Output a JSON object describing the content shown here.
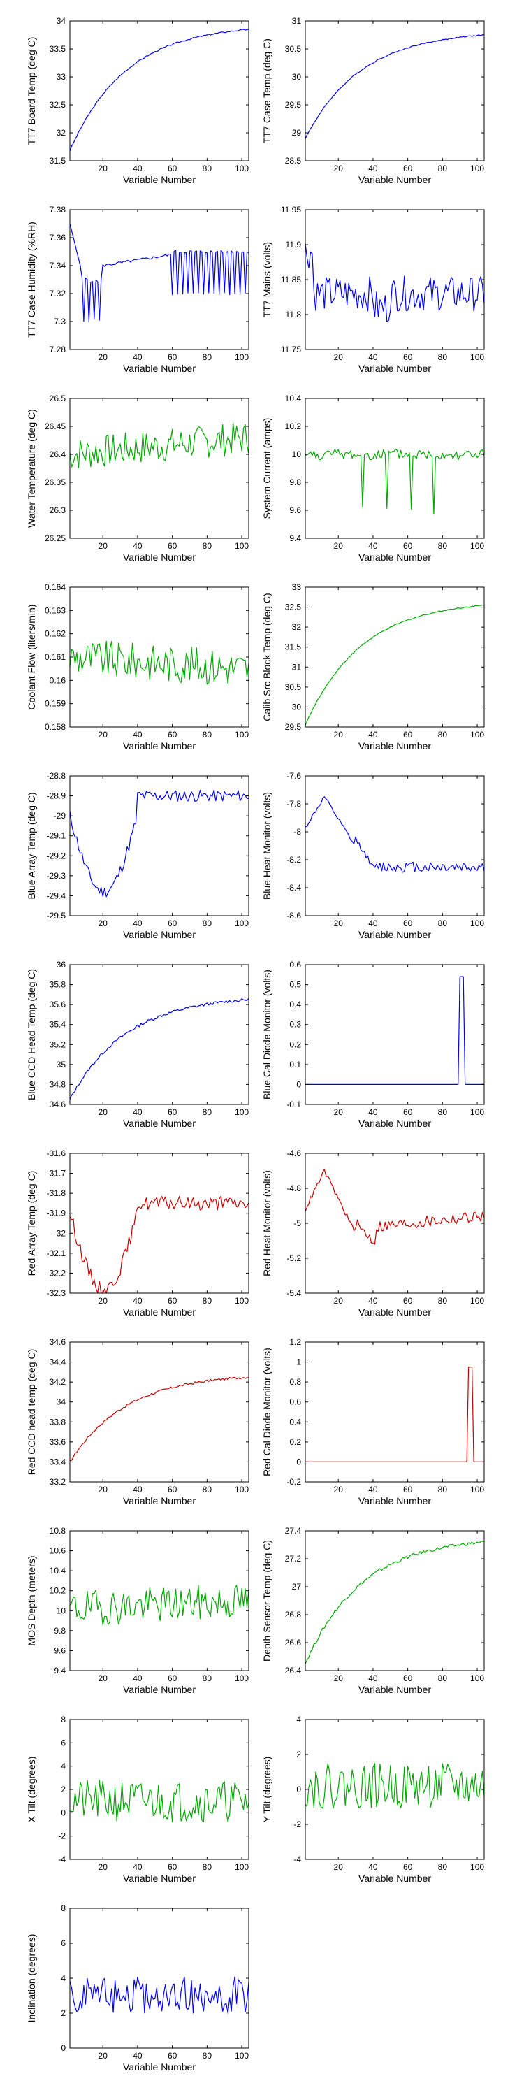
{
  "colors": {
    "blue": "#0000ff",
    "green": "#00aa00",
    "red": "#cc0000"
  },
  "chart_data": [
    {
      "type": "line",
      "ylabel": "TT7 Board Temp (deg C)",
      "xlabel": "Variable Number",
      "xlim": [
        1,
        104
      ],
      "xticks": [
        20,
        40,
        60,
        80,
        100
      ],
      "ylim": [
        31.5,
        34
      ],
      "yticks": [
        31.5,
        32,
        32.5,
        33,
        33.5,
        34
      ],
      "color": "#0000ff",
      "pattern": "rise",
      "start": 31.68,
      "end": 33.85,
      "noise": 0.012
    },
    {
      "type": "line",
      "ylabel": "TT7 Case Temp (deg C)",
      "xlabel": "Variable Number",
      "xlim": [
        1,
        104
      ],
      "xticks": [
        20,
        40,
        60,
        80,
        100
      ],
      "ylim": [
        28.5,
        31
      ],
      "yticks": [
        28.5,
        29,
        29.5,
        30,
        30.5,
        31
      ],
      "color": "#0000ff",
      "pattern": "rise",
      "start": 28.9,
      "end": 30.75,
      "noise": 0.01
    },
    {
      "type": "line",
      "ylabel": "TT7 Case Humidity (%RH)",
      "xlabel": "Variable Number",
      "xlim": [
        1,
        104
      ],
      "xticks": [
        20,
        40,
        60,
        80,
        100
      ],
      "ylim": [
        7.28,
        7.38
      ],
      "yticks": [
        7.28,
        7.3,
        7.32,
        7.34,
        7.36,
        7.38
      ],
      "color": "#0000ff",
      "pattern": "humidity",
      "start": 7.38,
      "end": 7.325,
      "noise": 0.0
    },
    {
      "type": "line",
      "ylabel": "TT7 Mains  (volts)",
      "xlabel": "Variable Number",
      "xlim": [
        1,
        104
      ],
      "xticks": [
        20,
        40,
        60,
        80,
        100
      ],
      "ylim": [
        11.75,
        11.95
      ],
      "yticks": [
        11.75,
        11.8,
        11.85,
        11.9,
        11.95
      ],
      "color": "#0000ff",
      "pattern": "mains",
      "start": 11.9,
      "end": 11.82,
      "noise": 0.025
    },
    {
      "type": "line",
      "ylabel": "Water Temperature (deg C)",
      "xlabel": "Variable Number",
      "xlim": [
        1,
        104
      ],
      "xticks": [
        20,
        40,
        60,
        80,
        100
      ],
      "ylim": [
        26.25,
        26.5
      ],
      "yticks": [
        26.25,
        26.3,
        26.35,
        26.4,
        26.45,
        26.5
      ],
      "color": "#00aa00",
      "pattern": "noisy",
      "start": 26.4,
      "end": 26.43,
      "noise": 0.03
    },
    {
      "type": "line",
      "ylabel": "System Current (amps)",
      "xlabel": "Variable Number",
      "xlim": [
        1,
        104
      ],
      "xticks": [
        20,
        40,
        60,
        80,
        100
      ],
      "ylim": [
        9.4,
        10.4
      ],
      "yticks": [
        9.4,
        9.6,
        9.8,
        10,
        10.2,
        10.4
      ],
      "color": "#00aa00",
      "pattern": "dips",
      "start": 10.0,
      "end": 9.9,
      "noise": 0.04
    },
    {
      "type": "line",
      "ylabel": "Coolant Flow (liters/min)",
      "xlabel": "Variable Number",
      "xlim": [
        1,
        104
      ],
      "xticks": [
        20,
        40,
        60,
        80,
        100
      ],
      "ylim": [
        0.158,
        0.164
      ],
      "yticks": [
        0.158,
        0.159,
        0.16,
        0.161,
        0.162,
        0.163,
        0.164
      ],
      "color": "#00aa00",
      "pattern": "noisy",
      "start": 0.161,
      "end": 0.1605,
      "noise": 0.0008
    },
    {
      "type": "line",
      "ylabel": "Calib Src Block Temp (deg C)",
      "xlabel": "Variable Number",
      "xlim": [
        1,
        104
      ],
      "xticks": [
        20,
        40,
        60,
        80,
        100
      ],
      "ylim": [
        29.5,
        33
      ],
      "yticks": [
        29.5,
        30,
        30.5,
        31,
        31.5,
        32,
        32.5,
        33
      ],
      "color": "#00aa00",
      "pattern": "rise",
      "start": 29.55,
      "end": 32.55,
      "noise": 0.015
    },
    {
      "type": "line",
      "ylabel": "Blue Array Temp (deg C)",
      "xlabel": "Variable Number",
      "xlim": [
        1,
        104
      ],
      "xticks": [
        20,
        40,
        60,
        80,
        100
      ],
      "ylim": [
        -29.5,
        -28.8
      ],
      "yticks": [
        -29.5,
        -29.4,
        -29.3,
        -29.2,
        -29.1,
        -29,
        -28.9,
        -28.8
      ],
      "color": "#0000ff",
      "pattern": "array",
      "start": -29.0,
      "end": -28.9,
      "noise": 0.03
    },
    {
      "type": "line",
      "ylabel": "Blue Heat Monitor (volts)",
      "xlabel": "Variable Number",
      "xlim": [
        1,
        104
      ],
      "xticks": [
        20,
        40,
        60,
        80,
        100
      ],
      "ylim": [
        -8.6,
        -7.6
      ],
      "yticks": [
        -8.6,
        -8.4,
        -8.2,
        -8,
        -7.8,
        -7.6
      ],
      "color": "#0000ff",
      "pattern": "heat",
      "start": -8.2,
      "end": -8.2,
      "noise": 0.04
    },
    {
      "type": "line",
      "ylabel": "Blue CCD Head Temp (deg C)",
      "xlabel": "Variable Number",
      "xlim": [
        1,
        104
      ],
      "xticks": [
        20,
        40,
        60,
        80,
        100
      ],
      "ylim": [
        34.6,
        36
      ],
      "yticks": [
        34.6,
        34.8,
        35,
        35.2,
        35.4,
        35.6,
        35.8,
        36
      ],
      "color": "#0000ff",
      "pattern": "rise",
      "start": 34.65,
      "end": 35.65,
      "noise": 0.015
    },
    {
      "type": "line",
      "ylabel": "Blue Cal Diode Monitor (volts)",
      "xlabel": "Variable Number",
      "xlim": [
        1,
        104
      ],
      "xticks": [
        20,
        40,
        60,
        80,
        100
      ],
      "ylim": [
        -0.1,
        0.6
      ],
      "yticks": [
        -0.1,
        0,
        0.1,
        0.2,
        0.3,
        0.4,
        0.5,
        0.6
      ],
      "color": "#0000ff",
      "pattern": "spike",
      "start": 0,
      "end": 0,
      "noise": 0.0,
      "spike_x": [
        90,
        92
      ],
      "spike_y": 0.54
    },
    {
      "type": "line",
      "ylabel": "Red Array Temp (deg C)",
      "xlabel": "Variable Number",
      "xlim": [
        1,
        104
      ],
      "xticks": [
        20,
        40,
        60,
        80,
        100
      ],
      "ylim": [
        -32.3,
        -31.6
      ],
      "yticks": [
        -32.3,
        -32.2,
        -32.1,
        -32,
        -31.9,
        -31.8,
        -31.7,
        -31.6
      ],
      "color": "#cc0000",
      "pattern": "array",
      "start": -31.9,
      "end": -31.85,
      "noise": 0.035
    },
    {
      "type": "line",
      "ylabel": "Red Heat Monitor (volts)",
      "xlabel": "Variable Number",
      "xlim": [
        1,
        104
      ],
      "xticks": [
        20,
        40,
        60,
        80,
        100
      ],
      "ylim": [
        -5.4,
        -4.6
      ],
      "yticks": [
        -5.4,
        -5.2,
        -5,
        -4.8,
        -4.6
      ],
      "color": "#cc0000",
      "pattern": "heat2",
      "start": -5.0,
      "end": -4.95,
      "noise": 0.035
    },
    {
      "type": "line",
      "ylabel": "Red CCD head temp (deg C)",
      "xlabel": "Variable Number",
      "xlim": [
        1,
        104
      ],
      "xticks": [
        20,
        40,
        60,
        80,
        100
      ],
      "ylim": [
        33.2,
        34.6
      ],
      "yticks": [
        33.2,
        33.4,
        33.6,
        33.8,
        34,
        34.2,
        34.4,
        34.6
      ],
      "color": "#cc0000",
      "pattern": "rise",
      "start": 33.4,
      "end": 34.25,
      "noise": 0.012
    },
    {
      "type": "line",
      "ylabel": "Red Cal Diode Monitor (volts)",
      "xlabel": "Variable Number",
      "xlim": [
        1,
        104
      ],
      "xticks": [
        20,
        40,
        60,
        80,
        100
      ],
      "ylim": [
        -0.2,
        1.2
      ],
      "yticks": [
        -0.2,
        0,
        0.2,
        0.4,
        0.6,
        0.8,
        1,
        1.2
      ],
      "color": "#cc0000",
      "pattern": "spike",
      "start": 0,
      "end": 0,
      "noise": 0.0,
      "spike_x": [
        95,
        97
      ],
      "spike_y": 0.95
    },
    {
      "type": "line",
      "ylabel": "MOS Depth  (meters)",
      "xlabel": "Variable Number",
      "xlim": [
        1,
        104
      ],
      "xticks": [
        20,
        40,
        60,
        80,
        100
      ],
      "ylim": [
        9.4,
        10.8
      ],
      "yticks": [
        9.4,
        9.6,
        9.8,
        10,
        10.2,
        10.4,
        10.6,
        10.8
      ],
      "color": "#00aa00",
      "pattern": "noisy",
      "start": 10.02,
      "end": 10.1,
      "noise": 0.18
    },
    {
      "type": "line",
      "ylabel": "Depth Sensor Temp (deg C)",
      "xlabel": "Variable Number",
      "xlim": [
        1,
        104
      ],
      "xticks": [
        20,
        40,
        60,
        80,
        100
      ],
      "ylim": [
        26.4,
        27.4
      ],
      "yticks": [
        26.4,
        26.6,
        26.8,
        27,
        27.2,
        27.4
      ],
      "color": "#00aa00",
      "pattern": "rise",
      "start": 26.45,
      "end": 27.32,
      "noise": 0.012
    },
    {
      "type": "line",
      "ylabel": "X Tilt  (degrees)",
      "xlabel": "Variable Number",
      "xlim": [
        1,
        104
      ],
      "xticks": [
        20,
        40,
        60,
        80,
        100
      ],
      "ylim": [
        -4,
        8
      ],
      "yticks": [
        -4,
        -2,
        0,
        2,
        4,
        6,
        8
      ],
      "color": "#00aa00",
      "pattern": "noisy",
      "start": 1.0,
      "end": 1.0,
      "noise": 1.8
    },
    {
      "type": "line",
      "ylabel": "Y Tilt  (degrees)",
      "xlabel": "Variable Number",
      "xlim": [
        1,
        104
      ],
      "xticks": [
        20,
        40,
        60,
        80,
        100
      ],
      "ylim": [
        -4,
        4
      ],
      "yticks": [
        -4,
        -2,
        0,
        2,
        4
      ],
      "color": "#00aa00",
      "pattern": "noisy",
      "start": 0.2,
      "end": 0.2,
      "noise": 1.3
    },
    {
      "type": "line",
      "ylabel": "Inclination  (degrees)",
      "xlabel": "Variable Number",
      "xlim": [
        1,
        104
      ],
      "xticks": [
        20,
        40,
        60,
        80,
        100
      ],
      "ylim": [
        0,
        8
      ],
      "yticks": [
        0,
        2,
        4,
        6,
        8
      ],
      "color": "#0000ff",
      "pattern": "incl",
      "start": 2.0,
      "end": 2.0,
      "noise": 1.4
    }
  ]
}
